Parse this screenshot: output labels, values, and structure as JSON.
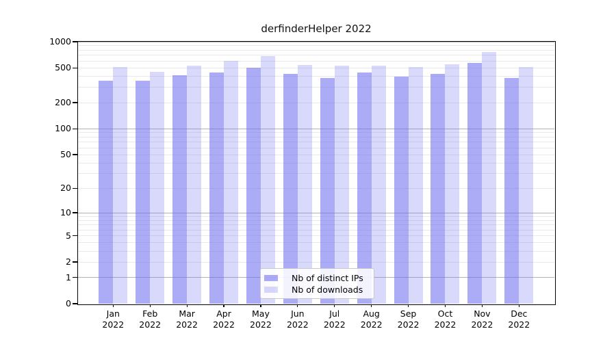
{
  "title": "derfinderHelper 2022",
  "colors": {
    "bar_distinct_ips": "rgba(102,102,238,0.55)",
    "bar_downloads": "rgba(102,102,238,0.25)",
    "grid_major": "#b3b3b3",
    "grid_minor": "#e9e9e9",
    "axis": "#000000",
    "legend_border": "#c8c8c8"
  },
  "legend": {
    "items": [
      {
        "label": "Nb of distinct IPs"
      },
      {
        "label": "Nb of downloads"
      }
    ]
  },
  "y_axis": {
    "tick_labels_top_to_bottom": [
      "1000",
      "500",
      "200",
      "100",
      "50",
      "20",
      "10",
      "5",
      "2",
      "1",
      "0"
    ]
  },
  "x_axis": {
    "year": "2022",
    "months": [
      "Jan",
      "Feb",
      "Mar",
      "Apr",
      "May",
      "Jun",
      "Jul",
      "Aug",
      "Sep",
      "Oct",
      "Nov",
      "Dec"
    ]
  },
  "chart_data": {
    "type": "bar",
    "title": "derfinderHelper 2022",
    "categories": [
      "Jan 2022",
      "Feb 2022",
      "Mar 2022",
      "Apr 2022",
      "May 2022",
      "Jun 2022",
      "Jul 2022",
      "Aug 2022",
      "Sep 2022",
      "Oct 2022",
      "Nov 2022",
      "Dec 2022"
    ],
    "series": [
      {
        "name": "Nb of distinct IPs",
        "color": "rgba(102,102,238,0.55)",
        "values": [
          360,
          355,
          415,
          445,
          500,
          425,
          385,
          440,
          395,
          425,
          575,
          385
        ]
      },
      {
        "name": "Nb of downloads",
        "color": "rgba(102,102,238,0.25)",
        "values": [
          510,
          455,
          535,
          605,
          690,
          545,
          535,
          535,
          510,
          555,
          760,
          510
        ]
      }
    ],
    "yscale": "log10(x+1)",
    "ylim": [
      0,
      1000
    ],
    "yticks": [
      0,
      1,
      2,
      5,
      10,
      20,
      50,
      100,
      200,
      500,
      1000
    ],
    "grid": true,
    "legend_position": "lower center"
  }
}
